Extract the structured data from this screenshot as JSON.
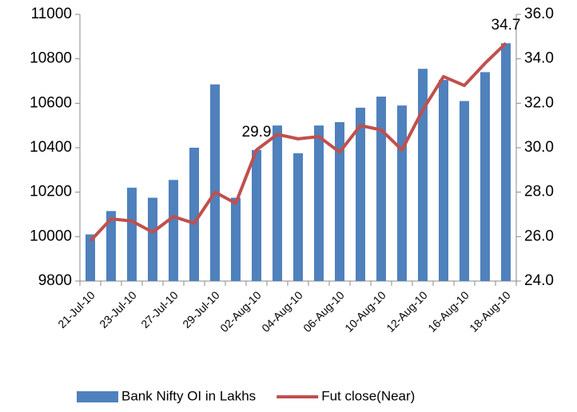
{
  "chart_data": {
    "type": "bar-line",
    "categories": [
      "21-Jul-10",
      null,
      "23-Jul-10",
      null,
      "27-Jul-10",
      null,
      "29-Jul-10",
      null,
      "02-Aug-10",
      null,
      "04-Aug-10",
      null,
      "06-Aug-10",
      null,
      "10-Aug-10",
      null,
      "12-Aug-10",
      null,
      "16-Aug-10",
      null,
      "18-Aug-10"
    ],
    "series": [
      {
        "name": "Bank Nifty OI in Lakhs",
        "type": "bar",
        "color": "#4f81bd",
        "values": [
          10010,
          10115,
          10220,
          10175,
          10255,
          10400,
          10685,
          10175,
          10390,
          10500,
          10375,
          10500,
          10515,
          10580,
          10630,
          10590,
          10755,
          10705,
          10610,
          10740,
          10870
        ]
      },
      {
        "name": "Fut close(Near)",
        "type": "line",
        "axis": "y2",
        "color": "#c0504d",
        "values": [
          25.8,
          26.8,
          26.7,
          26.2,
          26.9,
          26.6,
          28.0,
          27.5,
          29.9,
          30.6,
          30.4,
          30.5,
          29.8,
          31.0,
          30.8,
          29.9,
          31.7,
          33.2,
          32.8,
          33.8,
          34.7
        ],
        "value_labels": [
          null,
          null,
          null,
          null,
          null,
          null,
          null,
          null,
          "29.9",
          null,
          null,
          null,
          null,
          null,
          null,
          null,
          null,
          null,
          null,
          null,
          "34.7"
        ]
      }
    ],
    "ylim": [
      9800,
      11000
    ],
    "yticks": [
      9800,
      10000,
      10200,
      10400,
      10600,
      10800,
      11000
    ],
    "y2lim": [
      24,
      36
    ],
    "y2ticks": [
      {
        "value": 24,
        "label": "24.0"
      },
      {
        "value": 26,
        "label": "26.0"
      },
      {
        "value": 28,
        "label": "28.0"
      },
      {
        "value": 30,
        "label": "30.0"
      },
      {
        "value": 32,
        "label": "32.0"
      },
      {
        "value": 34,
        "label": "34.0"
      },
      {
        "value": 36,
        "label": "36.0"
      }
    ],
    "grid": false,
    "legend": "bottom"
  }
}
